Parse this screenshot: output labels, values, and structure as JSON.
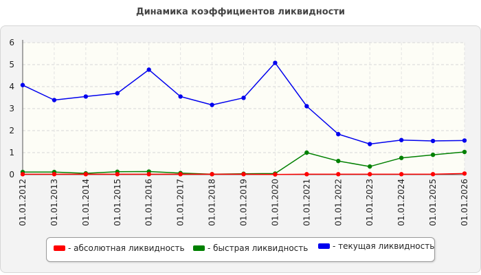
{
  "page": {
    "title": "Динамика коэффициентов ликвидности"
  },
  "legend": {
    "abs": "- абсолютная ликвидность",
    "quick": "- быстрая ликвидность",
    "current": "- текущая ликвидность"
  },
  "colors": {
    "abs": "#ff0000",
    "quick": "#008000",
    "current": "#0000ee"
  },
  "chart_data": {
    "type": "line",
    "title": "Динамика коэффициентов ликвидности",
    "xlabel": "",
    "ylabel": "",
    "ylim": [
      0,
      6
    ],
    "yticks": [
      0,
      1,
      2,
      3,
      4,
      5,
      6
    ],
    "grid": true,
    "legend_position": "bottom",
    "categories": [
      "01.01.2012",
      "01.01.2013",
      "01.01.2014",
      "01.01.2015",
      "01.01.2016",
      "01.01.2017",
      "01.01.2018",
      "01.01.2019",
      "01.01.2020",
      "01.01.2021",
      "01.01.2022",
      "01.01.2023",
      "01.01.2024",
      "01.01.2025",
      "01.01.2026"
    ],
    "series": [
      {
        "key": "abs",
        "name": "абсолютная ликвидность",
        "color": "#ff0000",
        "values": [
          0.02,
          0.02,
          0.02,
          0.02,
          0.02,
          0.02,
          0.02,
          0.02,
          0.01,
          0.02,
          0.02,
          0.02,
          0.02,
          0.02,
          0.05
        ]
      },
      {
        "key": "quick",
        "name": "быстрая ликвидность",
        "color": "#008000",
        "values": [
          0.12,
          0.12,
          0.06,
          0.13,
          0.14,
          0.07,
          0.02,
          0.04,
          0.05,
          1.0,
          0.62,
          0.37,
          0.76,
          0.9,
          1.03
        ]
      },
      {
        "key": "current",
        "name": "текущая ликвидность",
        "color": "#0000ee",
        "values": [
          4.07,
          3.39,
          3.55,
          3.7,
          4.77,
          3.55,
          3.17,
          3.49,
          5.08,
          3.11,
          1.84,
          1.39,
          1.57,
          1.53,
          1.55
        ]
      }
    ]
  }
}
